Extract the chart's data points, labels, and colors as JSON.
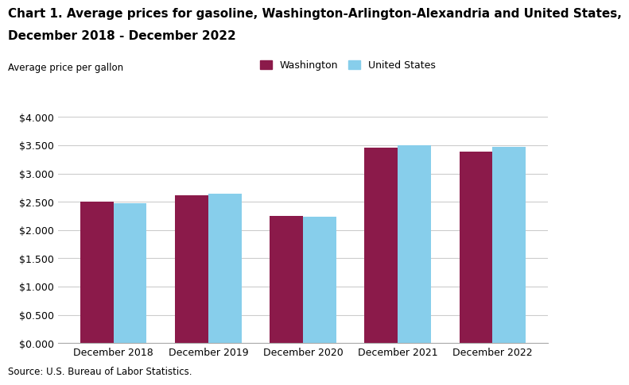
{
  "title_line1": "Chart 1. Average prices for gasoline, Washington-Arlington-Alexandria and United States,",
  "title_line2": "December 2018 - December 2022",
  "ylabel": "Average price per gallon",
  "source": "Source: U.S. Bureau of Labor Statistics.",
  "categories": [
    "December 2018",
    "December 2019",
    "December 2020",
    "December 2021",
    "December 2022"
  ],
  "washington_values": [
    2.504,
    2.617,
    2.254,
    3.451,
    3.388
  ],
  "us_values": [
    2.469,
    2.647,
    2.233,
    3.504,
    3.469
  ],
  "washington_color": "#8B1A4A",
  "us_color": "#87CEEB",
  "ylim": [
    0.0,
    4.0
  ],
  "yticks": [
    0.0,
    0.5,
    1.0,
    1.5,
    2.0,
    2.5,
    3.0,
    3.5,
    4.0
  ],
  "legend_washington": "Washington",
  "legend_us": "United States",
  "bar_width": 0.35,
  "title_fontsize": 11,
  "axis_label_fontsize": 8.5,
  "tick_fontsize": 9,
  "legend_fontsize": 9,
  "source_fontsize": 8.5
}
